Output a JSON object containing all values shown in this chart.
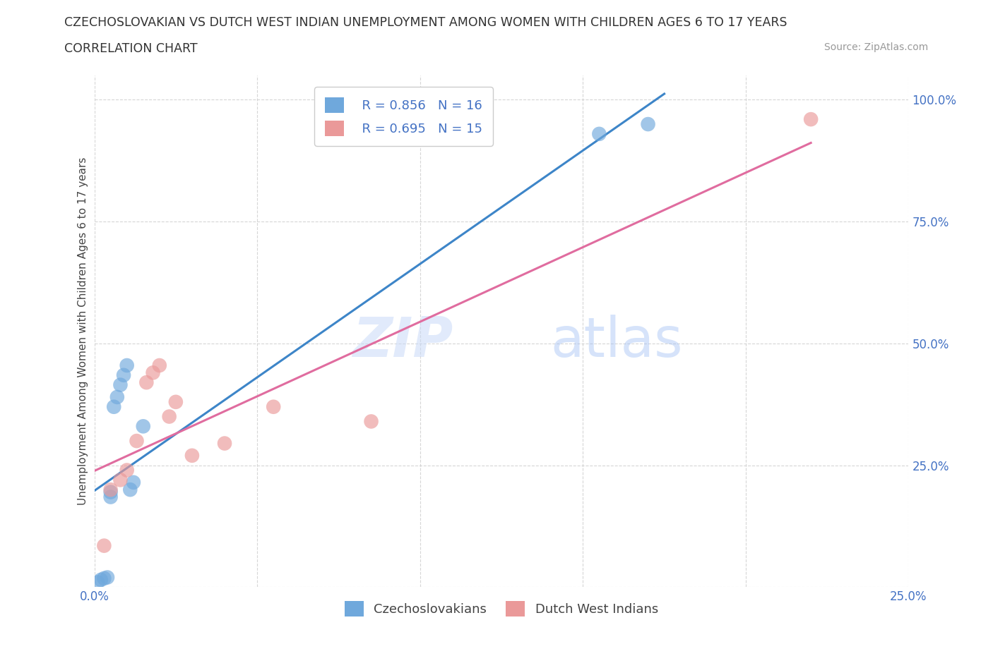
{
  "title": "CZECHOSLOVAKIAN VS DUTCH WEST INDIAN UNEMPLOYMENT AMONG WOMEN WITH CHILDREN AGES 6 TO 17 YEARS",
  "subtitle": "CORRELATION CHART",
  "source": "Source: ZipAtlas.com",
  "ylabel": "Unemployment Among Women with Children Ages 6 to 17 years",
  "xlim": [
    0.0,
    0.25
  ],
  "ylim": [
    0.0,
    1.05
  ],
  "blue_color": "#6fa8dc",
  "pink_color": "#ea9999",
  "blue_line_color": "#3d85c8",
  "pink_line_color": "#e06c9f",
  "legend_r1": "R = 0.856",
  "legend_n1": "N = 16",
  "legend_r2": "R = 0.695",
  "legend_n2": "N = 15",
  "legend_label1": "Czechoslovakians",
  "legend_label2": "Dutch West Indians",
  "background_color": "#ffffff",
  "grid_color": "#cccccc",
  "czecho_x": [
    0.001,
    0.002,
    0.003,
    0.004,
    0.005,
    0.005,
    0.006,
    0.007,
    0.008,
    0.009,
    0.01,
    0.011,
    0.012,
    0.015,
    0.155,
    0.17
  ],
  "czecho_y": [
    0.01,
    0.015,
    0.018,
    0.02,
    0.185,
    0.195,
    0.37,
    0.39,
    0.415,
    0.435,
    0.455,
    0.2,
    0.215,
    0.33,
    0.93,
    0.95
  ],
  "dutch_x": [
    0.003,
    0.005,
    0.008,
    0.01,
    0.013,
    0.016,
    0.018,
    0.02,
    0.023,
    0.025,
    0.03,
    0.04,
    0.055,
    0.085,
    0.22
  ],
  "dutch_y": [
    0.085,
    0.2,
    0.22,
    0.24,
    0.3,
    0.42,
    0.44,
    0.455,
    0.35,
    0.38,
    0.27,
    0.295,
    0.37,
    0.34,
    0.96
  ],
  "source_text": "Source: ZipAtlas.com"
}
